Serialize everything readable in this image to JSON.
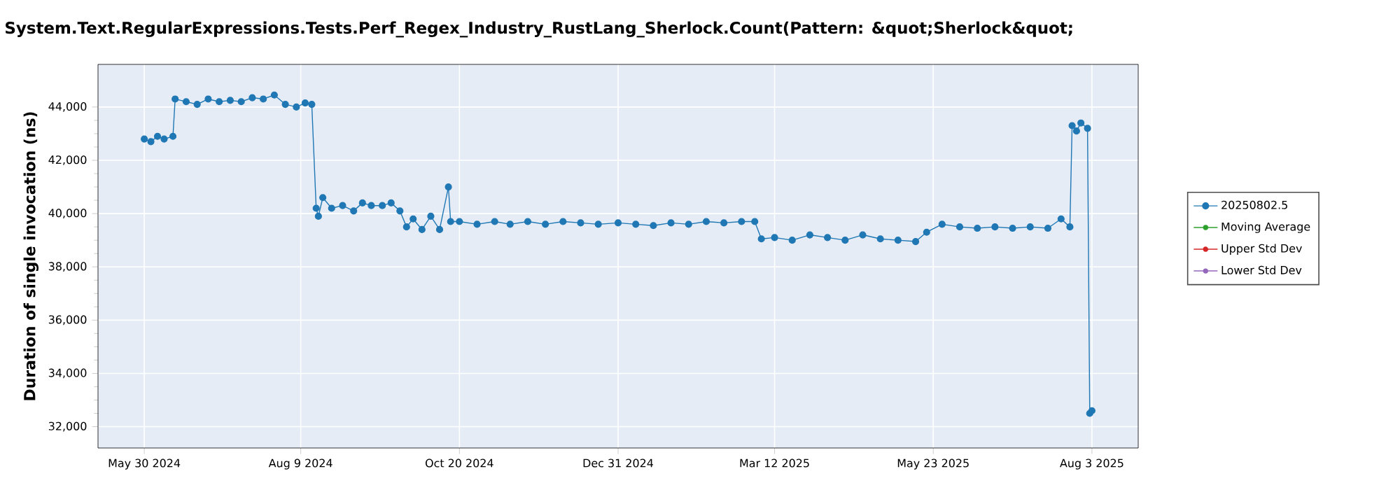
{
  "chart_data": {
    "type": "line",
    "title": "System.Text.RegularExpressions.Tests.Perf_Regex_Industry_RustLang_Sherlock.Count(Pattern: &quot;Sherlock&quot;",
    "ylabel": "Duration of single invocation (ns)",
    "x": [
      "2024-05-30",
      "2024-06-02",
      "2024-06-05",
      "2024-06-08",
      "2024-06-12",
      "2024-06-13",
      "2024-06-18",
      "2024-06-23",
      "2024-06-28",
      "2024-07-03",
      "2024-07-08",
      "2024-07-13",
      "2024-07-18",
      "2024-07-23",
      "2024-07-28",
      "2024-08-02",
      "2024-08-07",
      "2024-08-11",
      "2024-08-14",
      "2024-08-16",
      "2024-08-17",
      "2024-08-19",
      "2024-08-23",
      "2024-08-28",
      "2024-09-02",
      "2024-09-06",
      "2024-09-10",
      "2024-09-15",
      "2024-09-19",
      "2024-09-23",
      "2024-09-26",
      "2024-09-29",
      "2024-10-03",
      "2024-10-07",
      "2024-10-11",
      "2024-10-15",
      "2024-10-16",
      "2024-10-20",
      "2024-10-28",
      "2024-11-05",
      "2024-11-12",
      "2024-11-20",
      "2024-11-28",
      "2024-12-06",
      "2024-12-14",
      "2024-12-22",
      "2024-12-31",
      "2025-01-08",
      "2025-01-16",
      "2025-01-24",
      "2025-02-01",
      "2025-02-09",
      "2025-02-17",
      "2025-02-25",
      "2025-03-03",
      "2025-03-06",
      "2025-03-12",
      "2025-03-20",
      "2025-03-28",
      "2025-04-05",
      "2025-04-13",
      "2025-04-21",
      "2025-04-29",
      "2025-05-07",
      "2025-05-15",
      "2025-05-20",
      "2025-05-27",
      "2025-06-04",
      "2025-06-12",
      "2025-06-20",
      "2025-06-28",
      "2025-07-06",
      "2025-07-14",
      "2025-07-20",
      "2025-07-24",
      "2025-07-25",
      "2025-07-27",
      "2025-07-29",
      "2025-08-01",
      "2025-08-02",
      "2025-08-03"
    ],
    "series": [
      {
        "name": "20250802.5",
        "color": "#1f77b4",
        "values": [
          42800,
          42700,
          42900,
          42800,
          42900,
          44300,
          44200,
          44100,
          44300,
          44200,
          44250,
          44200,
          44350,
          44300,
          44450,
          44100,
          44000,
          44150,
          44100,
          40200,
          39900,
          40600,
          40200,
          40300,
          40100,
          40400,
          40300,
          40300,
          40400,
          40100,
          39500,
          39800,
          39400,
          39900,
          39400,
          41000,
          39700,
          39700,
          39600,
          39700,
          39600,
          39700,
          39600,
          39700,
          39650,
          39600,
          39650,
          39600,
          39550,
          39650,
          39600,
          39700,
          39650,
          39700,
          39700,
          39050,
          39100,
          39000,
          39200,
          39100,
          39000,
          39200,
          39050,
          39000,
          38950,
          39300,
          39600,
          39500,
          39450,
          39500,
          39450,
          39500,
          39450,
          39800,
          39500,
          43300,
          43100,
          43400,
          43200,
          32500,
          32600
        ]
      },
      {
        "name": "Moving Average",
        "color": "#2ca02c",
        "values": [
          null,
          null,
          null,
          null,
          null,
          null,
          null,
          null,
          null,
          null,
          null,
          null,
          null,
          null,
          null,
          null,
          null,
          null,
          null,
          null,
          null,
          null,
          null,
          null,
          null,
          null,
          null,
          null,
          null,
          null,
          null,
          null,
          null,
          null,
          null,
          null,
          null,
          null,
          null,
          null,
          null,
          null,
          null,
          null,
          null,
          null,
          null,
          null,
          null,
          null,
          null,
          null,
          null,
          null,
          null,
          null,
          null,
          null,
          null,
          null,
          null,
          null,
          null,
          null,
          null,
          null,
          null,
          null,
          null,
          null,
          null,
          null,
          null,
          null,
          null,
          null,
          null,
          null,
          null,
          null,
          null
        ]
      },
      {
        "name": "Upper Std Dev",
        "color": "#d62728",
        "values": [
          null,
          null,
          null,
          null,
          null,
          null,
          null,
          null,
          null,
          null,
          null,
          null,
          null,
          null,
          null,
          null,
          null,
          null,
          null,
          null,
          null,
          null,
          null,
          null,
          null,
          null,
          null,
          null,
          null,
          null,
          null,
          null,
          null,
          null,
          null,
          null,
          null,
          null,
          null,
          null,
          null,
          null,
          null,
          null,
          null,
          null,
          null,
          null,
          null,
          null,
          null,
          null,
          null,
          null,
          null,
          null,
          null,
          null,
          null,
          null,
          null,
          null,
          null,
          null,
          null,
          null,
          null,
          null,
          null,
          null,
          null,
          null,
          null,
          null,
          null,
          null,
          null,
          null,
          null,
          null,
          null
        ]
      },
      {
        "name": "Lower Std Dev",
        "color": "#9467bd",
        "values": [
          null,
          null,
          null,
          null,
          null,
          null,
          null,
          null,
          null,
          null,
          null,
          null,
          null,
          null,
          null,
          null,
          null,
          null,
          null,
          null,
          null,
          null,
          null,
          null,
          null,
          null,
          null,
          null,
          null,
          null,
          null,
          null,
          null,
          null,
          null,
          null,
          null,
          null,
          null,
          null,
          null,
          null,
          null,
          null,
          null,
          null,
          null,
          null,
          null,
          null,
          null,
          null,
          null,
          null,
          null,
          null,
          null,
          null,
          null,
          null,
          null,
          null,
          null,
          null,
          null,
          null,
          null,
          null,
          null,
          null,
          null,
          null,
          null,
          null,
          null,
          null,
          null,
          null,
          null,
          null,
          null
        ]
      }
    ],
    "xlim": [
      "2024-05-09",
      "2025-08-24"
    ],
    "xticks": [
      {
        "value": "2024-05-30",
        "label": "May 30 2024"
      },
      {
        "value": "2024-08-09",
        "label": "Aug 9 2024"
      },
      {
        "value": "2024-10-20",
        "label": "Oct 20 2024"
      },
      {
        "value": "2024-12-31",
        "label": "Dec 31 2024"
      },
      {
        "value": "2025-03-12",
        "label": "Mar 12 2025"
      },
      {
        "value": "2025-05-23",
        "label": "May 23 2025"
      },
      {
        "value": "2025-08-03",
        "label": "Aug 3 2025"
      }
    ],
    "ylim": [
      31200,
      45600
    ],
    "yticks": [
      {
        "value": 32000,
        "label": "32,000"
      },
      {
        "value": 34000,
        "label": "34,000"
      },
      {
        "value": 36000,
        "label": "36,000"
      },
      {
        "value": 38000,
        "label": "38,000"
      },
      {
        "value": 40000,
        "label": "40,000"
      },
      {
        "value": 42000,
        "label": "42,000"
      },
      {
        "value": 44000,
        "label": "44,000"
      }
    ],
    "grid": true,
    "legend": "right",
    "marker": "circle",
    "line_style": "solid"
  }
}
